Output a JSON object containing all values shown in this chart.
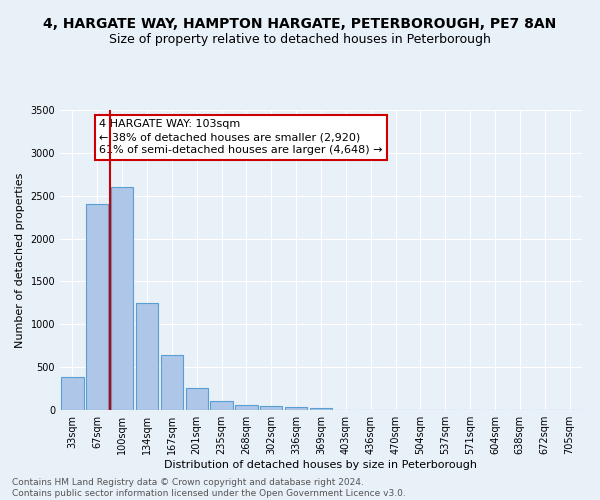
{
  "title": "4, HARGATE WAY, HAMPTON HARGATE, PETERBOROUGH, PE7 8AN",
  "subtitle": "Size of property relative to detached houses in Peterborough",
  "xlabel": "Distribution of detached houses by size in Peterborough",
  "ylabel": "Number of detached properties",
  "categories": [
    "33sqm",
    "67sqm",
    "100sqm",
    "134sqm",
    "167sqm",
    "201sqm",
    "235sqm",
    "268sqm",
    "302sqm",
    "336sqm",
    "369sqm",
    "403sqm",
    "436sqm",
    "470sqm",
    "504sqm",
    "537sqm",
    "571sqm",
    "604sqm",
    "638sqm",
    "672sqm",
    "705sqm"
  ],
  "values": [
    390,
    2400,
    2600,
    1250,
    640,
    260,
    100,
    60,
    45,
    35,
    25,
    0,
    0,
    0,
    0,
    0,
    0,
    0,
    0,
    0,
    0
  ],
  "bar_color": "#aec6e8",
  "bar_edge_color": "#5a9fd4",
  "vline_x": 1.5,
  "vline_color": "#cc0000",
  "annotation_text": "4 HARGATE WAY: 103sqm\n← 38% of detached houses are smaller (2,920)\n61% of semi-detached houses are larger (4,648) →",
  "annotation_box_color": "#ffffff",
  "annotation_box_edge": "#cc0000",
  "ylim": [
    0,
    3500
  ],
  "background_color": "#e8f0f8",
  "plot_bg_color": "#e8f0f8",
  "footer_line1": "Contains HM Land Registry data © Crown copyright and database right 2024.",
  "footer_line2": "Contains public sector information licensed under the Open Government Licence v3.0.",
  "title_fontsize": 10,
  "subtitle_fontsize": 9,
  "xlabel_fontsize": 8,
  "ylabel_fontsize": 8,
  "tick_fontsize": 7,
  "annotation_fontsize": 8,
  "footer_fontsize": 6.5
}
